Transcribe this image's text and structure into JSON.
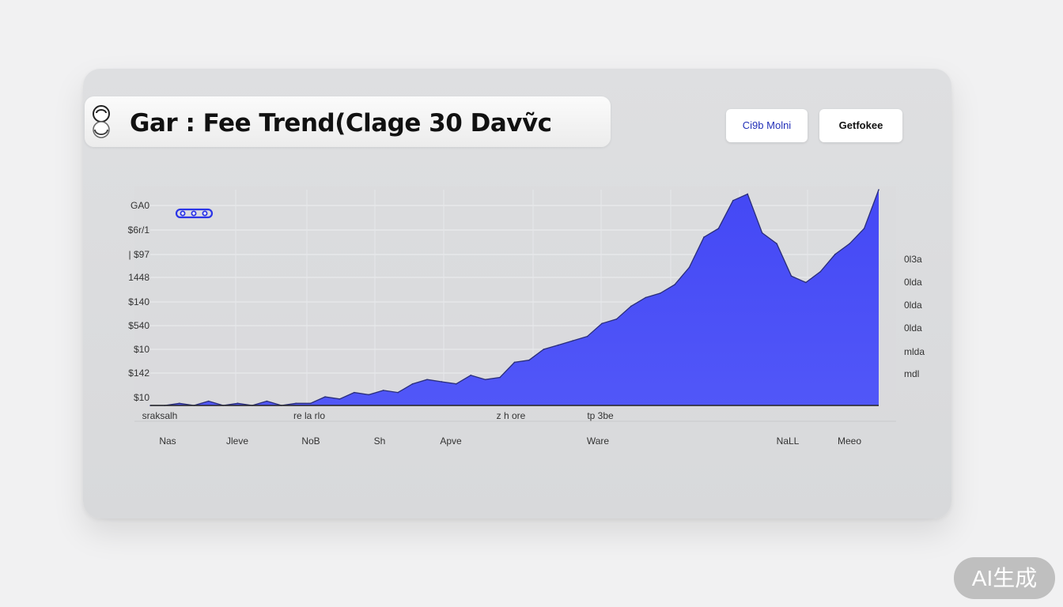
{
  "header": {
    "title": "Gar : Fee Trend(Clage 30 Davṽc",
    "buttons": [
      "Ci9b Molni",
      "Getfokee"
    ]
  },
  "watermark": "AI生成",
  "colors": {
    "area_fill": "#4a50f7",
    "area_stroke": "#2a2e7a",
    "card": "#dcdddf"
  },
  "legend_icon": "three-dot-legend-icon",
  "chart_data": {
    "type": "area",
    "title": "",
    "y_tick_labels_left": [
      "GA0",
      "$6r/1",
      "| $97",
      "1448",
      "$140",
      "$540",
      "$10",
      "$142",
      "$10"
    ],
    "y_tick_labels_right": [
      "0l3a",
      "0lda",
      "0lda",
      "0lda",
      "mlda",
      "mdl"
    ],
    "x_tick_labels_upper": [
      "sraksalh",
      "re la rlo",
      "z h ore",
      "tp 3be"
    ],
    "x_tick_labels_lower": [
      "Nas",
      "Jleve",
      "NoB",
      "Sh",
      "Apve",
      "Ware",
      "NaLL",
      "Meeo"
    ],
    "ylim": [
      0,
      100
    ],
    "x": [
      0,
      2,
      4,
      6,
      8,
      10,
      12,
      14,
      16,
      18,
      20,
      22,
      24,
      26,
      28,
      30,
      32,
      34,
      36,
      38,
      40,
      42,
      44,
      46,
      48,
      50,
      52,
      54,
      56,
      58,
      60,
      62,
      64,
      66,
      68,
      70,
      72,
      74,
      76,
      78,
      80,
      82,
      84,
      86,
      88,
      90,
      92,
      94,
      96,
      98,
      100
    ],
    "values": [
      0,
      0,
      1,
      0,
      2,
      0,
      1,
      0,
      2,
      0,
      1,
      1,
      4,
      3,
      6,
      5,
      7,
      6,
      10,
      12,
      11,
      10,
      14,
      12,
      13,
      20,
      21,
      26,
      28,
      30,
      32,
      38,
      40,
      46,
      50,
      52,
      56,
      64,
      78,
      82,
      95,
      98,
      80,
      75,
      60,
      57,
      62,
      70,
      75,
      82,
      100
    ],
    "grid": true
  }
}
